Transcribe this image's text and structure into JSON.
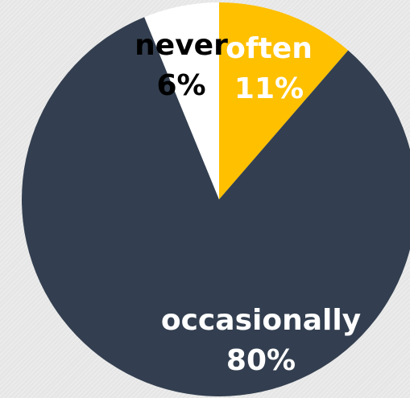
{
  "chart_data": {
    "type": "pie",
    "start_angle_deg": 0,
    "direction": "clockwise",
    "slices": [
      {
        "label": "often",
        "value": 11,
        "display": "11%",
        "color": "#ffc000",
        "label_color": "#ffffff"
      },
      {
        "label": "occasionally",
        "value": 80,
        "display": "80%",
        "color": "#333f50",
        "label_color": "#ffffff"
      },
      {
        "label": "never",
        "value": 6,
        "display": "6%",
        "color": "#ffffff",
        "label_color": "#000000"
      }
    ]
  }
}
